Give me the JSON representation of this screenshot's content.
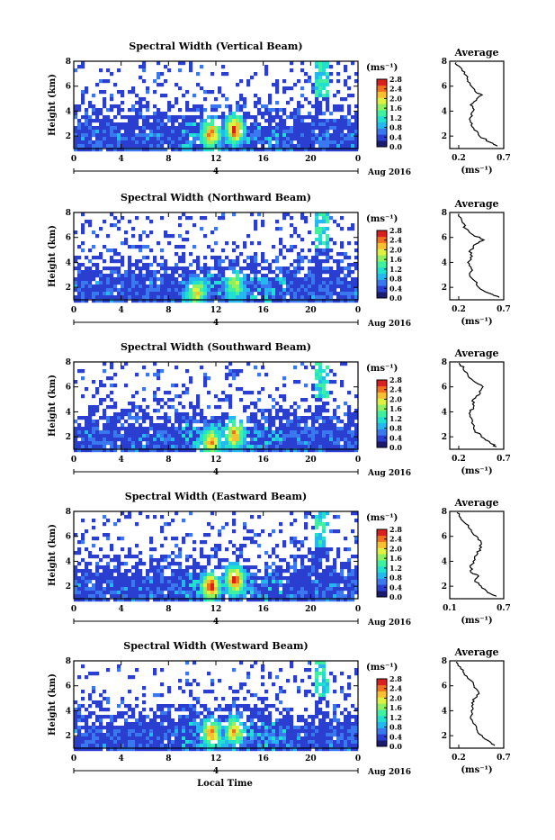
{
  "colors": {
    "scale": [
      "#1a1a6e",
      "#2a3fd0",
      "#3a78f0",
      "#25b8f0",
      "#20e0d0",
      "#40f0a0",
      "#90f060",
      "#e0f040",
      "#f8c030",
      "#f07020",
      "#d82020"
    ],
    "background": "#ffffff",
    "ink": "#000000"
  },
  "chart_data": [
    {
      "type": "heatmap",
      "title": "Spectral Width (Vertical Beam)",
      "ylabel": "Height (km)",
      "x_ticks": [
        "0",
        "4",
        "8",
        "12",
        "16",
        "20",
        "0"
      ],
      "y_ticks": [
        "2",
        "4",
        "6",
        "8"
      ],
      "date_marker": "4",
      "date_label": "Aug 2016",
      "xlim": [
        0,
        24
      ],
      "ylim": [
        1,
        8
      ],
      "colorbar": {
        "unit": "(ms⁻¹)",
        "ticks": [
          "0.0",
          "0.4",
          "0.8",
          "1.2",
          "1.6",
          "2.0",
          "2.4",
          "2.8"
        ]
      },
      "profile": {
        "title": "Average",
        "xlabel": "(ms⁻¹)",
        "x_ticks": [
          "0.2",
          "0.7"
        ],
        "y_ticks": [
          "2",
          "4",
          "6",
          "8"
        ],
        "xlim": [
          0.1,
          0.7
        ],
        "ylim": [
          1,
          8
        ],
        "height_km": [
          1.2,
          1.5,
          2,
          2.5,
          3,
          3.5,
          4,
          4.5,
          5,
          5.3,
          5.6,
          6,
          6.5,
          7,
          7.5,
          7.9
        ],
        "width_ms": [
          0.63,
          0.55,
          0.43,
          0.37,
          0.35,
          0.33,
          0.36,
          0.33,
          0.4,
          0.46,
          0.38,
          0.34,
          0.3,
          0.26,
          0.22,
          0.17
        ]
      },
      "hotspots": [
        {
          "time_h": 11.6,
          "height_km": 2.2,
          "value": 2.6
        },
        {
          "time_h": 13.6,
          "height_km": 2.5,
          "value": 2.8
        }
      ]
    },
    {
      "type": "heatmap",
      "title": "Spectral Width (Northward Beam)",
      "ylabel": "Height (km)",
      "x_ticks": [
        "0",
        "4",
        "8",
        "12",
        "16",
        "20",
        "0"
      ],
      "y_ticks": [
        "2",
        "4",
        "6",
        "8"
      ],
      "date_marker": "4",
      "date_label": "Aug 2016",
      "xlim": [
        0,
        24
      ],
      "ylim": [
        1,
        8
      ],
      "colorbar": {
        "unit": "(ms⁻¹)",
        "ticks": [
          "0.0",
          "0.4",
          "0.8",
          "1.2",
          "1.6",
          "2.0",
          "2.4",
          "2.8"
        ]
      },
      "profile": {
        "title": "Average",
        "xlabel": "(ms⁻¹)",
        "x_ticks": [
          "0.2",
          "0.7"
        ],
        "y_ticks": [
          "2",
          "4",
          "6",
          "8"
        ],
        "xlim": [
          0.1,
          0.7
        ],
        "ylim": [
          1,
          8
        ],
        "height_km": [
          1.2,
          1.5,
          2,
          2.5,
          3,
          3.5,
          4,
          4.5,
          5,
          5.5,
          5.8,
          6.2,
          6.7,
          7.2,
          7.9
        ],
        "width_ms": [
          0.65,
          0.55,
          0.42,
          0.38,
          0.32,
          0.34,
          0.3,
          0.35,
          0.33,
          0.4,
          0.48,
          0.36,
          0.28,
          0.24,
          0.2
        ]
      },
      "hotspots": [
        {
          "time_h": 10.4,
          "height_km": 1.6,
          "value": 2.2
        },
        {
          "time_h": 13.6,
          "height_km": 2.2,
          "value": 2.0
        }
      ]
    },
    {
      "type": "heatmap",
      "title": "Spectral Width (Southward Beam)",
      "ylabel": "Height (km)",
      "x_ticks": [
        "0",
        "4",
        "8",
        "12",
        "16",
        "20",
        "0"
      ],
      "y_ticks": [
        "2",
        "4",
        "6",
        "8"
      ],
      "date_marker": "4",
      "date_label": "Aug 2016",
      "xlim": [
        0,
        24
      ],
      "ylim": [
        1,
        8
      ],
      "colorbar": {
        "unit": "(ms⁻¹)",
        "ticks": [
          "0.0",
          "0.4",
          "0.8",
          "1.2",
          "1.6",
          "2.0",
          "2.4",
          "2.8"
        ]
      },
      "profile": {
        "title": "Average",
        "xlabel": "(ms⁻¹)",
        "x_ticks": [
          "0.2",
          "0.7"
        ],
        "y_ticks": [
          "2",
          "4",
          "6",
          "8"
        ],
        "xlim": [
          0.1,
          0.7
        ],
        "ylim": [
          1,
          8
        ],
        "height_km": [
          1.2,
          1.5,
          2,
          2.5,
          3,
          3.5,
          4,
          4.5,
          5,
          5.5,
          6,
          6.5,
          7,
          7.5,
          7.9
        ],
        "width_ms": [
          0.62,
          0.55,
          0.45,
          0.38,
          0.36,
          0.34,
          0.33,
          0.37,
          0.36,
          0.44,
          0.47,
          0.36,
          0.3,
          0.25,
          0.2
        ]
      },
      "hotspots": [
        {
          "time_h": 11.6,
          "height_km": 1.6,
          "value": 2.4
        },
        {
          "time_h": 13.6,
          "height_km": 2.2,
          "value": 2.6
        }
      ]
    },
    {
      "type": "heatmap",
      "title": "Spectral Width (Eastward Beam)",
      "ylabel": "Height (km)",
      "x_ticks": [
        "0",
        "4",
        "8",
        "12",
        "16",
        "20",
        "0"
      ],
      "y_ticks": [
        "2",
        "4",
        "6",
        "8"
      ],
      "date_marker": "4",
      "date_label": "Aug 2016",
      "xlim": [
        0,
        24
      ],
      "ylim": [
        1,
        8
      ],
      "colorbar": {
        "unit": "(ms⁻¹)",
        "ticks": [
          "0.0",
          "0.4",
          "0.8",
          "1.2",
          "1.6",
          "2.0",
          "2.4",
          "2.8"
        ]
      },
      "profile": {
        "title": "Average",
        "xlabel": "(ms⁻¹)",
        "x_ticks": [
          "0.1",
          "0.7"
        ],
        "y_ticks": [
          "2",
          "4",
          "6",
          "8"
        ],
        "xlim": [
          0.1,
          0.7
        ],
        "ylim": [
          1,
          8
        ],
        "height_km": [
          1.2,
          1.5,
          2,
          2.5,
          2.8,
          3,
          3.5,
          4,
          4.5,
          5,
          5.5,
          6,
          6.5,
          7,
          7.5,
          7.9
        ],
        "width_ms": [
          0.62,
          0.52,
          0.45,
          0.38,
          0.42,
          0.36,
          0.33,
          0.36,
          0.4,
          0.43,
          0.45,
          0.4,
          0.34,
          0.28,
          0.22,
          0.18
        ]
      },
      "hotspots": [
        {
          "time_h": 11.6,
          "height_km": 2.0,
          "value": 2.8
        },
        {
          "time_h": 13.6,
          "height_km": 2.5,
          "value": 2.8
        }
      ]
    },
    {
      "type": "heatmap",
      "title": "Spectral Width (Westward Beam)",
      "ylabel": "Height (km)",
      "x_ticks": [
        "0",
        "4",
        "8",
        "12",
        "16",
        "20",
        "0"
      ],
      "y_ticks": [
        "2",
        "4",
        "6",
        "8"
      ],
      "date_marker": "4",
      "date_label": "Aug 2016",
      "xlabel": "Local Time",
      "xlim": [
        0,
        24
      ],
      "ylim": [
        1,
        8
      ],
      "colorbar": {
        "unit": "(ms⁻¹)",
        "ticks": [
          "0.0",
          "0.4",
          "0.8",
          "1.2",
          "1.6",
          "2.0",
          "2.4",
          "2.8"
        ]
      },
      "profile": {
        "title": "Average",
        "xlabel": "(ms⁻¹)",
        "x_ticks": [
          "0.2",
          "0.7"
        ],
        "y_ticks": [
          "2",
          "4",
          "6",
          "8"
        ],
        "xlim": [
          0.1,
          0.7
        ],
        "ylim": [
          1,
          8
        ],
        "height_km": [
          1.2,
          1.5,
          2,
          2.5,
          3,
          3.5,
          4,
          4.5,
          5,
          5.5,
          6,
          6.5,
          7,
          7.5,
          7.9
        ],
        "width_ms": [
          0.6,
          0.55,
          0.46,
          0.4,
          0.36,
          0.33,
          0.34,
          0.36,
          0.38,
          0.42,
          0.37,
          0.32,
          0.26,
          0.22,
          0.17
        ]
      },
      "hotspots": [
        {
          "time_h": 11.6,
          "height_km": 2.2,
          "value": 2.6
        },
        {
          "time_h": 13.6,
          "height_km": 2.4,
          "value": 2.4
        }
      ]
    }
  ]
}
